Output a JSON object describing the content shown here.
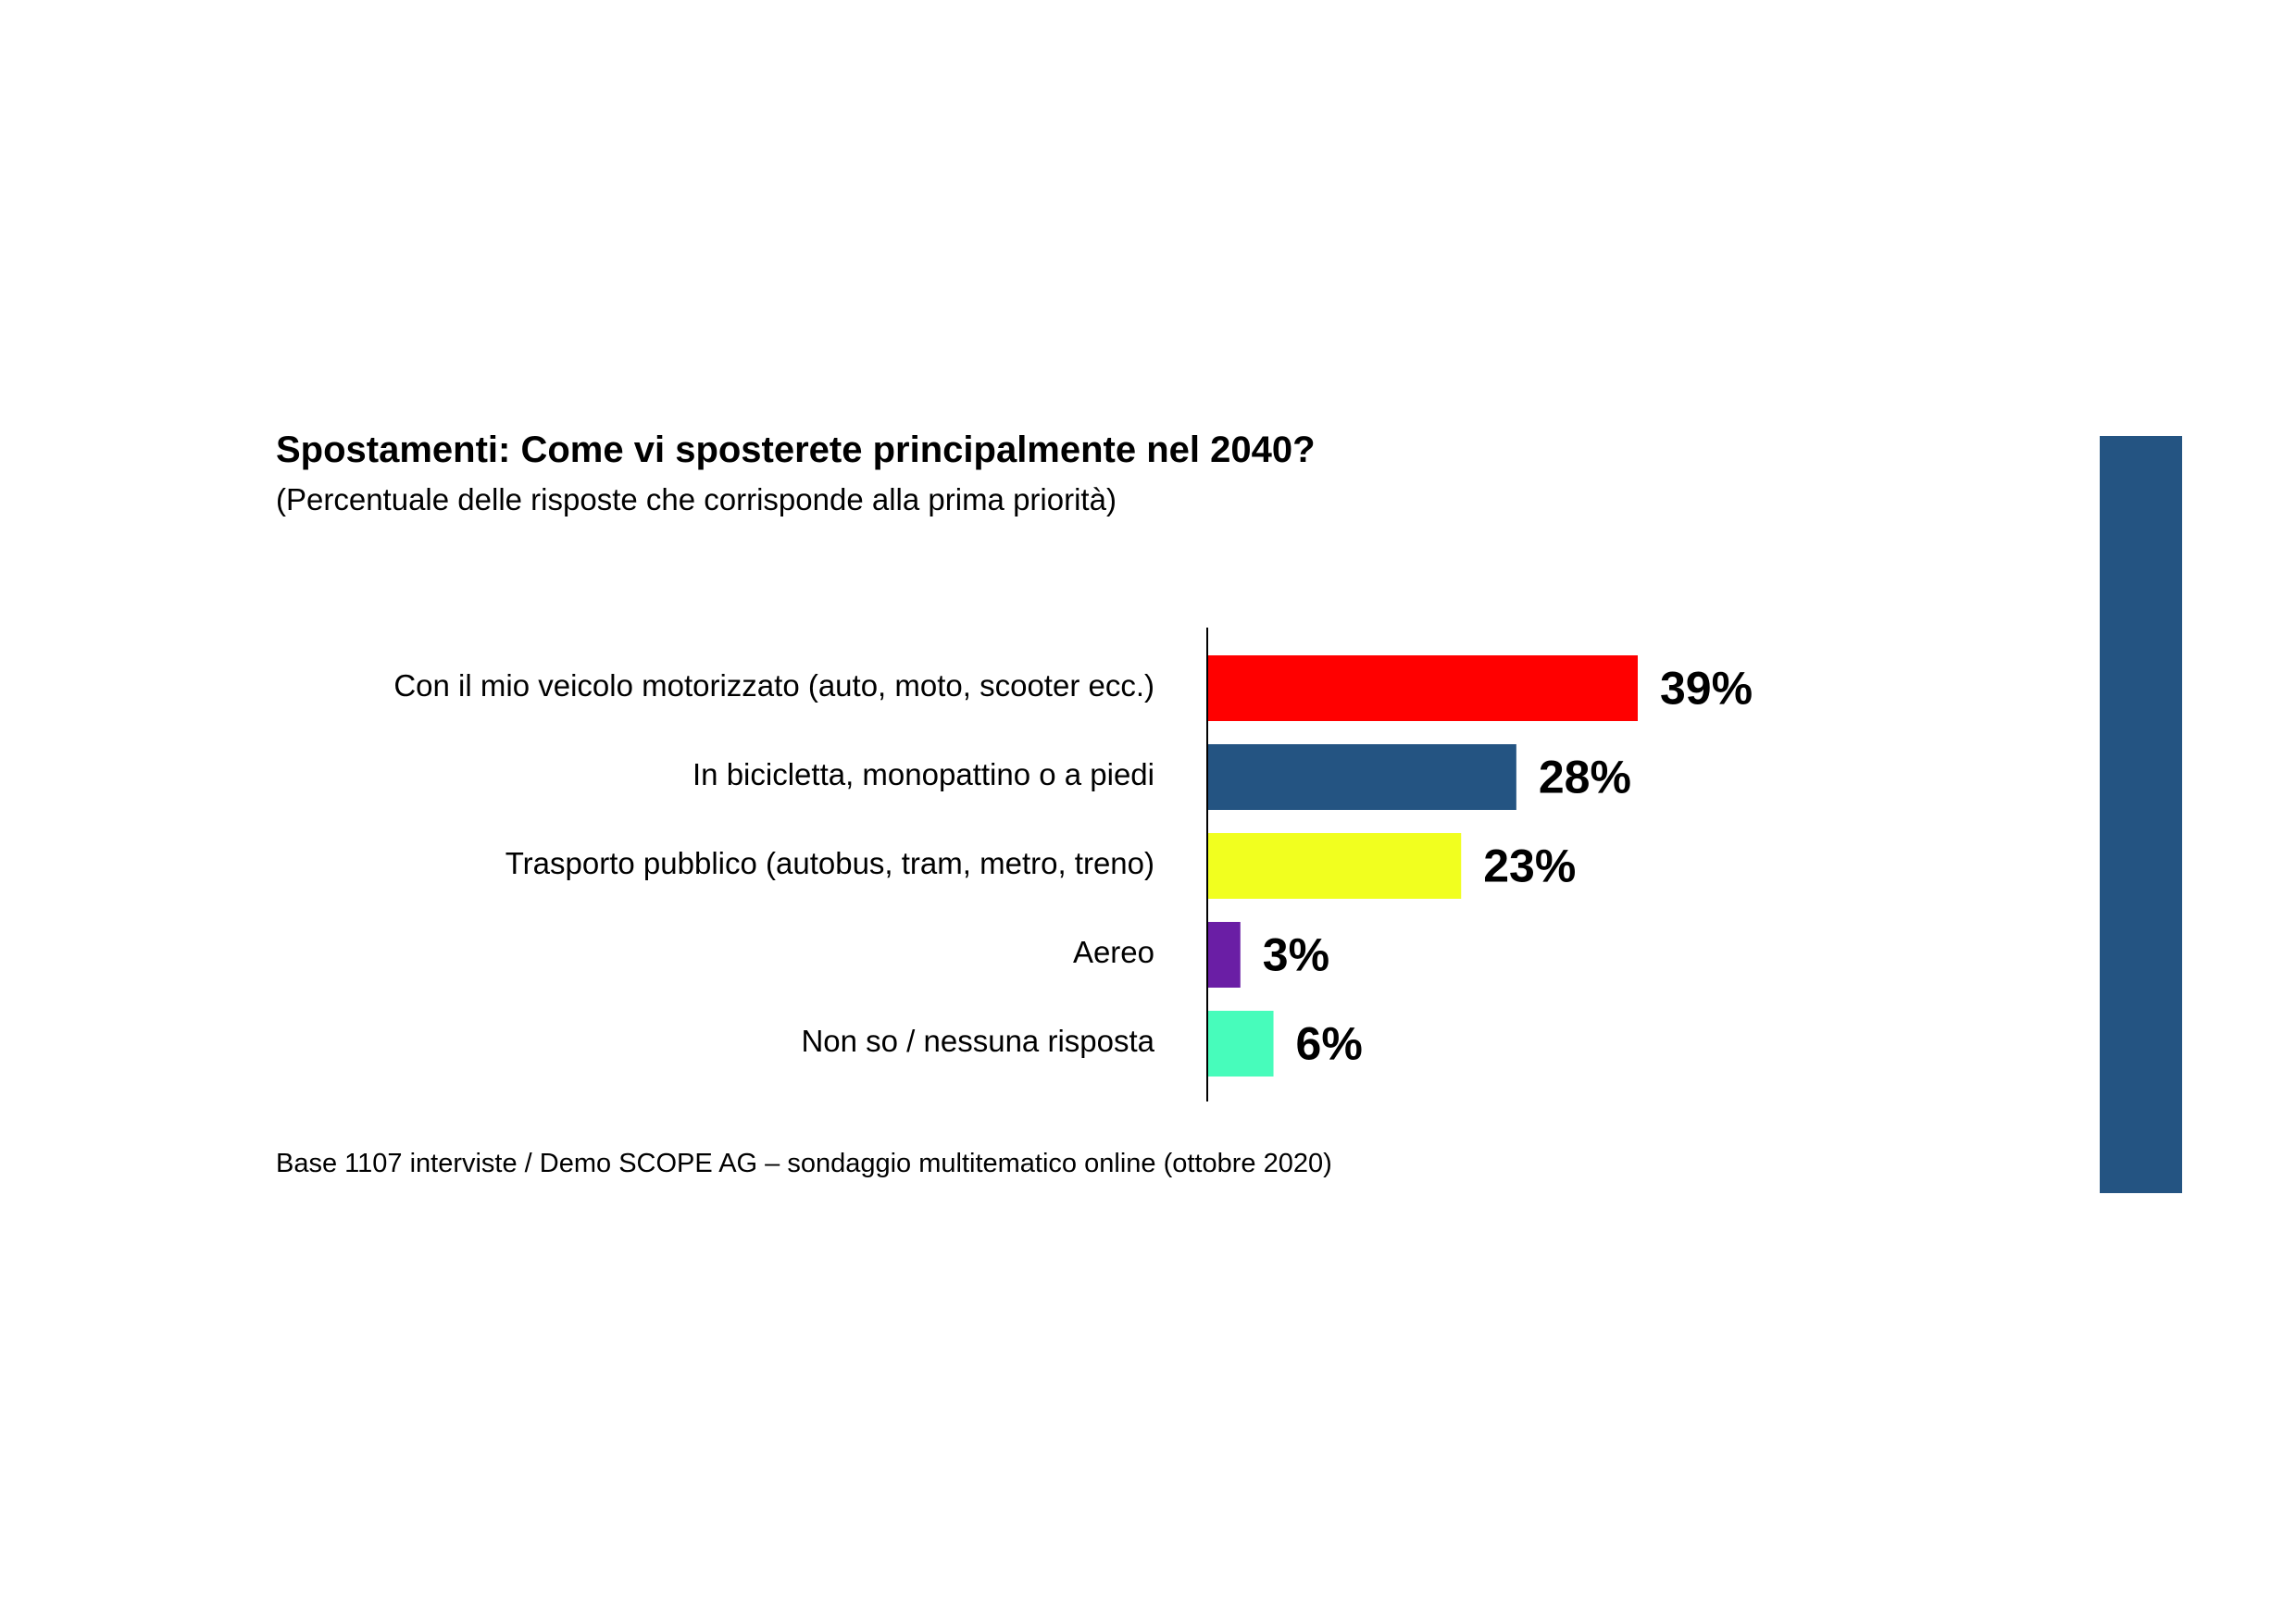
{
  "colors": {
    "side_bar": "#245482",
    "axis": "#000000",
    "label_text": "#000000"
  },
  "chart_data": {
    "type": "bar",
    "orientation": "horizontal",
    "title": "Spostamenti: Come vi sposterete principalmente nel 2040?",
    "subtitle": "(Percentuale delle risposte che corrisponde alla prima priorità)",
    "categories": [
      "Con il mio veicolo motorizzato (auto, moto, scooter ecc.)",
      "In bicicletta, monopattino o a piedi",
      "Trasporto pubblico (autobus, tram, metro, treno)",
      "Aereo",
      "Non so / nessuna risposta"
    ],
    "values": [
      39,
      28,
      23,
      3,
      6
    ],
    "value_labels": [
      "39%",
      "28%",
      "23%",
      "3%",
      "6%"
    ],
    "bar_colors": [
      "#ff0000",
      "#245482",
      "#f1ff1f",
      "#6a1ea5",
      "#47fcbb"
    ],
    "xlim": [
      0,
      40
    ],
    "grid": false,
    "legend": "none",
    "source": "Base 1107 interviste / Demo SCOPE AG – sondaggio multitematico online (ottobre 2020)"
  }
}
